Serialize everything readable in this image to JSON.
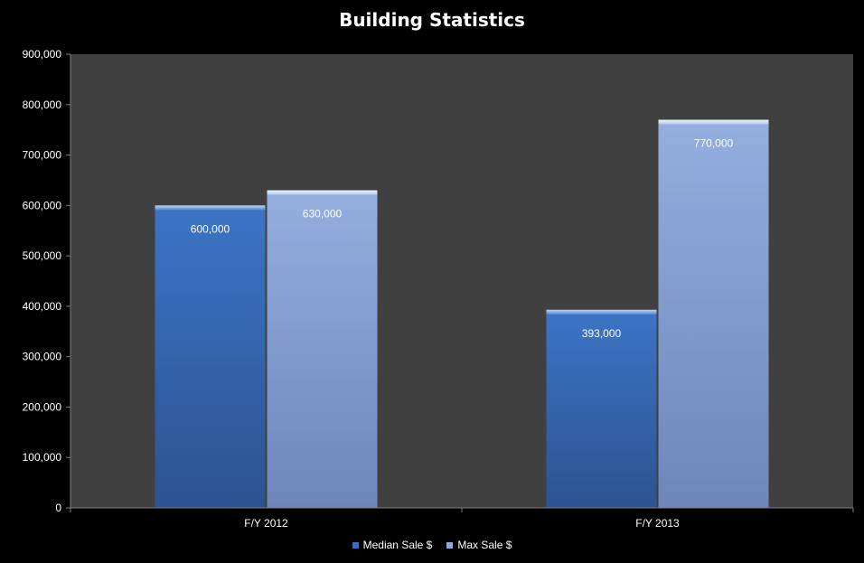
{
  "chart_data": {
    "type": "bar",
    "title": "Building Statistics",
    "categories": [
      "F/Y 2012",
      "F/Y 2013"
    ],
    "series": [
      {
        "name": "Median Sale $",
        "values": [
          600000,
          393000
        ],
        "value_labels": [
          "600,000",
          "393,000"
        ],
        "color": "#3a6fbf"
      },
      {
        "name": "Max Sale $",
        "values": [
          630000,
          770000
        ],
        "value_labels": [
          "630,000",
          "770,000"
        ],
        "color": "#8fa8d8"
      }
    ],
    "ylim": [
      0,
      900000
    ],
    "yticks": [
      0,
      100000,
      200000,
      300000,
      400000,
      500000,
      600000,
      700000,
      800000,
      900000
    ],
    "ytick_labels": [
      "0",
      "100,000",
      "200,000",
      "300,000",
      "400,000",
      "500,000",
      "600,000",
      "700,000",
      "800,000",
      "900,000"
    ],
    "grid": false,
    "legend": "bottom",
    "colors": {
      "background": "#000000",
      "plot_area": "#404040",
      "axis": "#808080",
      "text": "#ffffff"
    }
  }
}
